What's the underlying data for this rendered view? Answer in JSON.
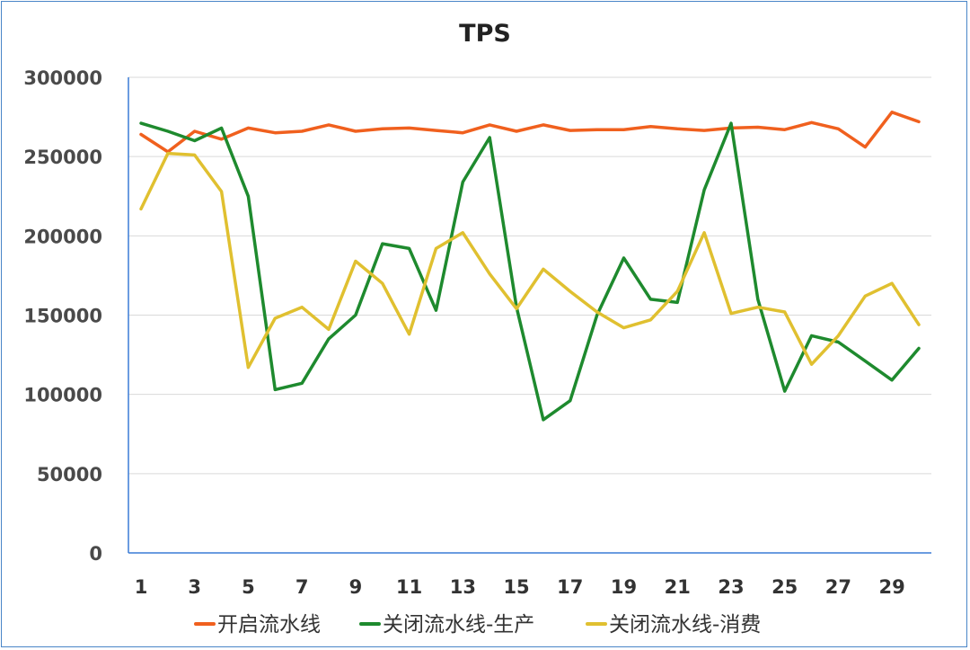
{
  "chart_data": {
    "type": "line",
    "title": "TPS",
    "xlabel": "",
    "ylabel": "",
    "x": [
      1,
      2,
      3,
      4,
      5,
      6,
      7,
      8,
      9,
      10,
      11,
      12,
      13,
      14,
      15,
      16,
      17,
      18,
      19,
      20,
      21,
      22,
      23,
      24,
      25,
      26,
      27,
      28,
      29,
      30
    ],
    "x_tick_labels": [
      "1",
      "3",
      "5",
      "7",
      "9",
      "11",
      "13",
      "15",
      "17",
      "19",
      "21",
      "23",
      "25",
      "27",
      "29"
    ],
    "y_tick_labels": [
      "0",
      "50000",
      "100000",
      "150000",
      "200000",
      "250000",
      "300000"
    ],
    "ylim": [
      0,
      300000
    ],
    "grid": true,
    "legend_position": "bottom",
    "series": [
      {
        "name": "开启流水线",
        "color": "#f0601e",
        "values": [
          264000,
          253000,
          266000,
          261000,
          268000,
          265000,
          266000,
          270000,
          266000,
          267500,
          268000,
          266500,
          265000,
          270000,
          266000,
          270000,
          266500,
          267000,
          267000,
          269000,
          267500,
          266500,
          268000,
          268500,
          267000,
          271500,
          267500,
          256000,
          278000,
          272000
        ]
      },
      {
        "name": "关闭流水线-生产",
        "color": "#1e8a2e",
        "values": [
          271000,
          266000,
          260000,
          268000,
          225000,
          103000,
          107000,
          135000,
          150000,
          195000,
          192000,
          153000,
          234000,
          262000,
          155000,
          84000,
          96000,
          150000,
          186000,
          160000,
          158000,
          229000,
          271000,
          160000,
          102000,
          137000,
          133000,
          121000,
          109000,
          129000
        ]
      },
      {
        "name": "关闭流水线-消费",
        "color": "#e0c030",
        "values": [
          217000,
          252000,
          251000,
          228000,
          117000,
          148000,
          155000,
          141000,
          184000,
          170000,
          138000,
          192000,
          202000,
          176000,
          154000,
          179000,
          165000,
          152000,
          142000,
          147000,
          165000,
          202000,
          151000,
          155000,
          152000,
          119000,
          137000,
          162000,
          170000,
          144000
        ]
      }
    ]
  }
}
